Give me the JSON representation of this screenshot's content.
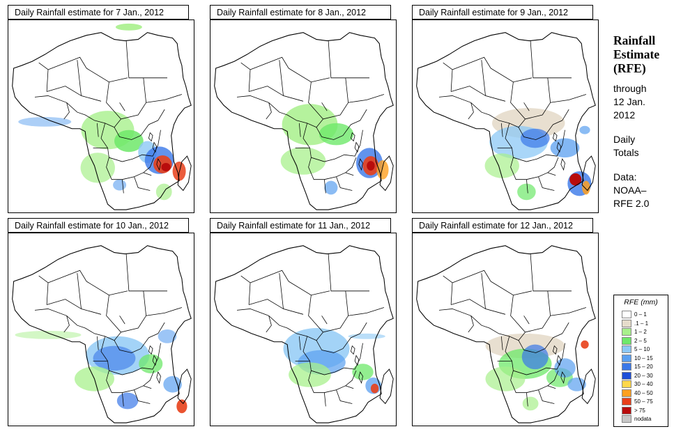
{
  "panels": [
    {
      "title": "Daily Rainfall estimate for  7 Jan., 2012",
      "scenario": "p1"
    },
    {
      "title": "Daily Rainfall estimate for  8 Jan., 2012",
      "scenario": "p2"
    },
    {
      "title": "Daily Rainfall estimate for  9 Jan., 2012",
      "scenario": "p3"
    },
    {
      "title": "Daily Rainfall estimate for  10 Jan., 2012",
      "scenario": "p4"
    },
    {
      "title": "Daily Rainfall estimate for  11 Jan., 2012",
      "scenario": "p5"
    },
    {
      "title": "Daily Rainfall estimate for  12 Jan., 2012",
      "scenario": "p6"
    }
  ],
  "side": {
    "title_line1": "Rainfall",
    "title_line2": "Estimate",
    "title_line3": "(RFE)",
    "through_line1": "through",
    "through_line2": "12 Jan.",
    "through_line3": "2012",
    "totals_line1": "Daily",
    "totals_line2": "Totals",
    "data_line1": "Data:",
    "data_line2": "NOAA–",
    "data_line3": "RFE 2.0"
  },
  "legend": {
    "title": "RFE (mm)",
    "items": [
      {
        "label": "0 – 1",
        "color": "#ffffff"
      },
      {
        "label": ".1 – 1",
        "color": "#e6dccb"
      },
      {
        "label": "1 – 2",
        "color": "#a8f08c"
      },
      {
        "label": "2 – 5",
        "color": "#6ee86a"
      },
      {
        "label": "5 – 10",
        "color": "#8cc8f5"
      },
      {
        "label": "10 – 15",
        "color": "#5a9ff0"
      },
      {
        "label": "15 – 20",
        "color": "#3a78e8"
      },
      {
        "label": "20 – 30",
        "color": "#1f4fd8"
      },
      {
        "label": "30 – 40",
        "color": "#ffd84a"
      },
      {
        "label": "40 – 50",
        "color": "#ffa020"
      },
      {
        "label": "50 – 75",
        "color": "#e8401a"
      },
      {
        "label": "> 75",
        "color": "#b80c0c"
      },
      {
        "label": "nodata",
        "color": "#c8c8c8"
      }
    ]
  }
}
